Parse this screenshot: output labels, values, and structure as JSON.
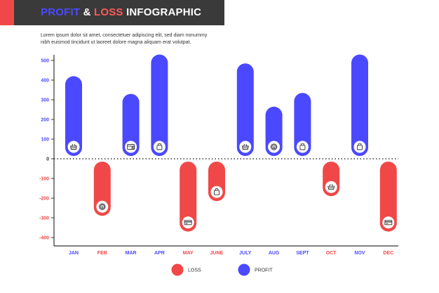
{
  "header": {
    "title_w1": "PROFIT",
    "title_w2": " & ",
    "title_w3": "LOSS",
    "title_w4": " INFOGRAPHIC",
    "subtitle": "Lorem ipsum dolor sit amet, consectetuer adipiscing elit, sed diam nonummy nibh euismod tincidunt ut laoreet dolore magna aliquam erat volutpat."
  },
  "colors": {
    "profit": "#4b49ff",
    "loss": "#f04848",
    "header_bg": "#3a3a3a"
  },
  "chart_data": {
    "type": "bar",
    "categories": [
      "JAN",
      "FEB",
      "MAR",
      "APR",
      "MAY",
      "JUNE",
      "JULY",
      "AUG",
      "SEPT",
      "OCT",
      "NOV",
      "DEC"
    ],
    "values": [
      420,
      -290,
      330,
      530,
      -370,
      -215,
      485,
      265,
      335,
      -190,
      530,
      -370
    ],
    "icons": [
      "basket-icon",
      "coin-icon",
      "wallet-icon",
      "bag-icon",
      "card-icon",
      "bag-icon",
      "basket-icon",
      "coin-icon",
      "bag-icon",
      "basket-icon",
      "bag-icon",
      "card-icon"
    ],
    "ylim": [
      -450,
      530
    ],
    "yticks": [
      500,
      400,
      300,
      200,
      100,
      0,
      -100,
      -200,
      -300,
      -400
    ],
    "series": [
      {
        "name": "LOSS",
        "color": "#f04848"
      },
      {
        "name": "PROFIT",
        "color": "#4b49ff"
      }
    ],
    "grid": false,
    "legend_position": "bottom"
  }
}
